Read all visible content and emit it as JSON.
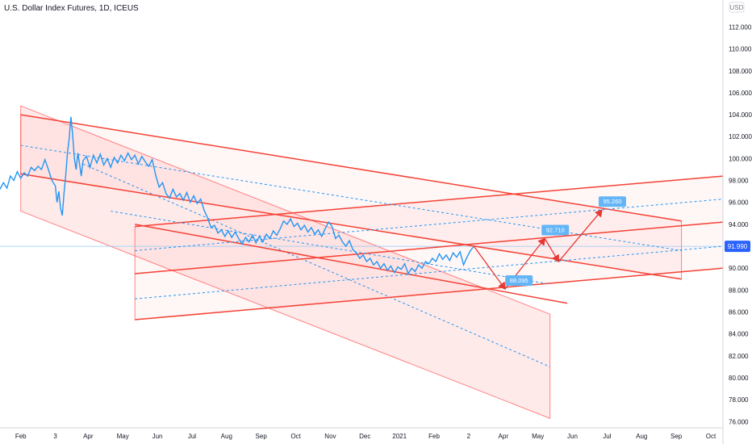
{
  "header": {
    "title": "U.S. Dollar Index Futures, 1D, ICEUS"
  },
  "chart_data": {
    "type": "line",
    "currency": "USD",
    "y_axis": {
      "ticks": [
        76,
        78,
        80,
        82,
        84,
        86,
        88,
        90,
        92,
        94,
        96,
        98,
        100,
        102,
        104,
        106,
        108,
        110,
        112
      ],
      "tick_labels": [
        "76.000",
        "78.000",
        "80.000",
        "82.000",
        "84.000",
        "86.000",
        "88.000",
        "90.000",
        "92.000",
        "94.000",
        "96.000",
        "98.000",
        "100.000",
        "102.000",
        "104.000",
        "106.000",
        "108.000",
        "110.000",
        "112.000"
      ],
      "ylim": [
        75.8,
        113.8
      ],
      "position": "right"
    },
    "x_axis": {
      "labels": [
        {
          "text": "Feb",
          "t": 0
        },
        {
          "text": "3",
          "t": 1.0
        },
        {
          "text": "Apr",
          "t": 1.95
        },
        {
          "text": "May",
          "t": 2.95
        },
        {
          "text": "Jun",
          "t": 3.95
        },
        {
          "text": "Jul",
          "t": 4.95
        },
        {
          "text": "Aug",
          "t": 5.95
        },
        {
          "text": "Sep",
          "t": 6.95
        },
        {
          "text": "Oct",
          "t": 7.95
        },
        {
          "text": "Nov",
          "t": 8.95
        },
        {
          "text": "Dec",
          "t": 9.95
        },
        {
          "text": "2021",
          "t": 10.95
        },
        {
          "text": "Feb",
          "t": 11.95
        },
        {
          "text": "2",
          "t": 12.95
        },
        {
          "text": "Apr",
          "t": 13.95
        },
        {
          "text": "May",
          "t": 14.95
        },
        {
          "text": "Jun",
          "t": 15.95
        },
        {
          "text": "Jul",
          "t": 16.95
        },
        {
          "text": "Aug",
          "t": 17.95
        },
        {
          "text": "Sep",
          "t": 18.95
        },
        {
          "text": "Oct",
          "t": 19.95
        }
      ],
      "xlim": [
        -0.6,
        20.3
      ]
    },
    "last_price": {
      "value": 91.99,
      "label": "91.990",
      "color": "#2962ff"
    },
    "series": [
      {
        "color": "#2196f3",
        "points": [
          [
            -0.6,
            97.2
          ],
          [
            -0.5,
            97.8
          ],
          [
            -0.4,
            97.3
          ],
          [
            -0.3,
            98.4
          ],
          [
            -0.2,
            98.0
          ],
          [
            -0.1,
            98.8
          ],
          [
            0.0,
            98.2
          ],
          [
            0.1,
            98.7
          ],
          [
            0.2,
            98.4
          ],
          [
            0.3,
            99.2
          ],
          [
            0.4,
            98.9
          ],
          [
            0.5,
            99.3
          ],
          [
            0.6,
            99.0
          ],
          [
            0.7,
            99.9
          ],
          [
            0.8,
            99.0
          ],
          [
            0.9,
            98.0
          ],
          [
            1.0,
            97.5
          ],
          [
            1.05,
            96.0
          ],
          [
            1.1,
            97.0
          ],
          [
            1.15,
            95.5
          ],
          [
            1.2,
            94.8
          ],
          [
            1.25,
            96.8
          ],
          [
            1.3,
            98.5
          ],
          [
            1.35,
            100.5
          ],
          [
            1.4,
            101.8
          ],
          [
            1.45,
            103.8
          ],
          [
            1.5,
            102.2
          ],
          [
            1.55,
            100.0
          ],
          [
            1.6,
            99.0
          ],
          [
            1.65,
            100.5
          ],
          [
            1.7,
            99.5
          ],
          [
            1.75,
            98.4
          ],
          [
            1.8,
            99.8
          ],
          [
            1.9,
            100.2
          ],
          [
            2.0,
            99.2
          ],
          [
            2.1,
            100.3
          ],
          [
            2.2,
            99.6
          ],
          [
            2.3,
            100.4
          ],
          [
            2.4,
            99.4
          ],
          [
            2.5,
            100.0
          ],
          [
            2.6,
            99.2
          ],
          [
            2.7,
            100.1
          ],
          [
            2.8,
            99.6
          ],
          [
            2.9,
            100.3
          ],
          [
            3.0,
            99.8
          ],
          [
            3.1,
            100.5
          ],
          [
            3.2,
            99.9
          ],
          [
            3.3,
            100.3
          ],
          [
            3.4,
            99.5
          ],
          [
            3.5,
            100.2
          ],
          [
            3.6,
            99.7
          ],
          [
            3.7,
            99.3
          ],
          [
            3.8,
            99.9
          ],
          [
            3.9,
            98.5
          ],
          [
            4.0,
            97.4
          ],
          [
            4.1,
            97.8
          ],
          [
            4.2,
            96.8
          ],
          [
            4.3,
            96.4
          ],
          [
            4.4,
            97.2
          ],
          [
            4.5,
            96.5
          ],
          [
            4.6,
            96.8
          ],
          [
            4.7,
            96.2
          ],
          [
            4.8,
            96.9
          ],
          [
            4.9,
            96.0
          ],
          [
            5.0,
            96.6
          ],
          [
            5.1,
            95.9
          ],
          [
            5.2,
            96.3
          ],
          [
            5.3,
            95.3
          ],
          [
            5.4,
            94.6
          ],
          [
            5.5,
            93.7
          ],
          [
            5.6,
            93.9
          ],
          [
            5.7,
            93.2
          ],
          [
            5.8,
            93.5
          ],
          [
            5.9,
            92.9
          ],
          [
            6.0,
            93.4
          ],
          [
            6.1,
            92.8
          ],
          [
            6.2,
            93.3
          ],
          [
            6.3,
            92.7
          ],
          [
            6.4,
            92.2
          ],
          [
            6.5,
            92.8
          ],
          [
            6.6,
            92.4
          ],
          [
            6.7,
            93.0
          ],
          [
            6.8,
            92.3
          ],
          [
            6.9,
            92.9
          ],
          [
            7.0,
            92.4
          ],
          [
            7.1,
            93.1
          ],
          [
            7.2,
            92.7
          ],
          [
            7.3,
            93.4
          ],
          [
            7.4,
            93.0
          ],
          [
            7.5,
            93.6
          ],
          [
            7.6,
            94.3
          ],
          [
            7.7,
            94.0
          ],
          [
            7.8,
            94.5
          ],
          [
            7.9,
            93.8
          ],
          [
            8.0,
            94.1
          ],
          [
            8.1,
            93.5
          ],
          [
            8.2,
            93.9
          ],
          [
            8.3,
            93.3
          ],
          [
            8.4,
            93.7
          ],
          [
            8.5,
            93.1
          ],
          [
            8.6,
            93.5
          ],
          [
            8.7,
            92.9
          ],
          [
            8.8,
            93.6
          ],
          [
            8.9,
            94.2
          ],
          [
            9.0,
            93.8
          ],
          [
            9.1,
            92.7
          ],
          [
            9.2,
            93.0
          ],
          [
            9.3,
            92.4
          ],
          [
            9.4,
            92.0
          ],
          [
            9.5,
            92.5
          ],
          [
            9.6,
            91.7
          ],
          [
            9.7,
            91.4
          ],
          [
            9.8,
            90.9
          ],
          [
            9.9,
            91.2
          ],
          [
            10.0,
            90.6
          ],
          [
            10.1,
            90.9
          ],
          [
            10.2,
            90.3
          ],
          [
            10.3,
            90.6
          ],
          [
            10.4,
            90.0
          ],
          [
            10.5,
            90.4
          ],
          [
            10.6,
            89.8
          ],
          [
            10.7,
            90.2
          ],
          [
            10.8,
            89.6
          ],
          [
            10.9,
            90.1
          ],
          [
            11.0,
            89.9
          ],
          [
            11.1,
            90.4
          ],
          [
            11.2,
            89.5
          ],
          [
            11.3,
            90.0
          ],
          [
            11.4,
            89.7
          ],
          [
            11.5,
            90.3
          ],
          [
            11.6,
            90.0
          ],
          [
            11.7,
            90.6
          ],
          [
            11.8,
            90.4
          ],
          [
            11.9,
            90.9
          ],
          [
            12.0,
            90.6
          ],
          [
            12.1,
            91.3
          ],
          [
            12.2,
            90.8
          ],
          [
            12.3,
            91.2
          ],
          [
            12.4,
            90.7
          ],
          [
            12.5,
            91.4
          ],
          [
            12.6,
            91.0
          ],
          [
            12.7,
            91.5
          ],
          [
            12.8,
            90.3
          ],
          [
            12.9,
            91.0
          ],
          [
            13.0,
            91.6
          ],
          [
            13.1,
            92.0
          ]
        ]
      }
    ],
    "projection": {
      "color": "#e53935",
      "points": [
        [
          13.1,
          92.0
        ],
        [
          14.0,
          88.1
        ],
        [
          15.15,
          92.7
        ],
        [
          15.55,
          90.6
        ],
        [
          16.8,
          95.3
        ]
      ],
      "labels": [
        {
          "text": "88.095",
          "t": 14.1,
          "v": 88.1
        },
        {
          "text": "92.710",
          "t": 15.15,
          "v": 92.7
        },
        {
          "text": "95.260",
          "t": 16.8,
          "v": 95.3
        }
      ]
    },
    "trend_lines": [
      {
        "kind": "solid",
        "from": [
          0.0,
          104.0
        ],
        "to": [
          19.1,
          94.3
        ]
      },
      {
        "kind": "solid",
        "from": [
          0.0,
          98.6
        ],
        "to": [
          19.1,
          89.0
        ]
      },
      {
        "kind": "solid",
        "from": [
          3.3,
          94.0
        ],
        "to": [
          15.8,
          86.8
        ]
      },
      {
        "kind": "solid",
        "from": [
          3.3,
          89.5
        ],
        "to": [
          20.3,
          94.2
        ]
      },
      {
        "kind": "solid",
        "from": [
          3.3,
          85.3
        ],
        "to": [
          20.3,
          90.0
        ]
      },
      {
        "kind": "solid",
        "from": [
          3.3,
          93.8
        ],
        "to": [
          20.3,
          98.4
        ]
      },
      {
        "kind": "dashed",
        "from": [
          0.0,
          101.2
        ],
        "to": [
          19.1,
          91.6
        ]
      },
      {
        "kind": "dashed",
        "from": [
          2.6,
          95.2
        ],
        "to": [
          15.2,
          88.6
        ]
      },
      {
        "kind": "dashed",
        "from": [
          3.3,
          87.2
        ],
        "to": [
          20.3,
          92.0
        ]
      },
      {
        "kind": "dashed",
        "from": [
          3.3,
          91.6
        ],
        "to": [
          20.3,
          96.3
        ]
      }
    ],
    "channels": [
      {
        "color": "#ff5252",
        "top": [
          [
            0.0,
            104.8
          ],
          [
            15.3,
            85.8
          ]
        ],
        "bottom": [
          [
            0.0,
            95.2
          ],
          [
            15.3,
            76.3
          ]
        ],
        "mid": [
          [
            1.8,
            99.5
          ],
          [
            15.3,
            81.0
          ]
        ]
      },
      {
        "color": "#ff5252",
        "top": [
          [
            3.3,
            93.8
          ],
          [
            20.3,
            98.4
          ]
        ],
        "bottom": [
          [
            3.3,
            89.5
          ],
          [
            20.3,
            94.2
          ]
        ]
      },
      {
        "color": "#ff5252",
        "top": [
          [
            3.3,
            89.5
          ],
          [
            20.3,
            94.2
          ]
        ],
        "bottom": [
          [
            3.3,
            85.3
          ],
          [
            20.3,
            90.0
          ]
        ]
      },
      {
        "color": "#ff5252",
        "top": [
          [
            0.0,
            104.0
          ],
          [
            19.1,
            94.3
          ]
        ],
        "bottom": [
          [
            0.0,
            98.6
          ],
          [
            19.1,
            89.0
          ]
        ]
      }
    ]
  }
}
